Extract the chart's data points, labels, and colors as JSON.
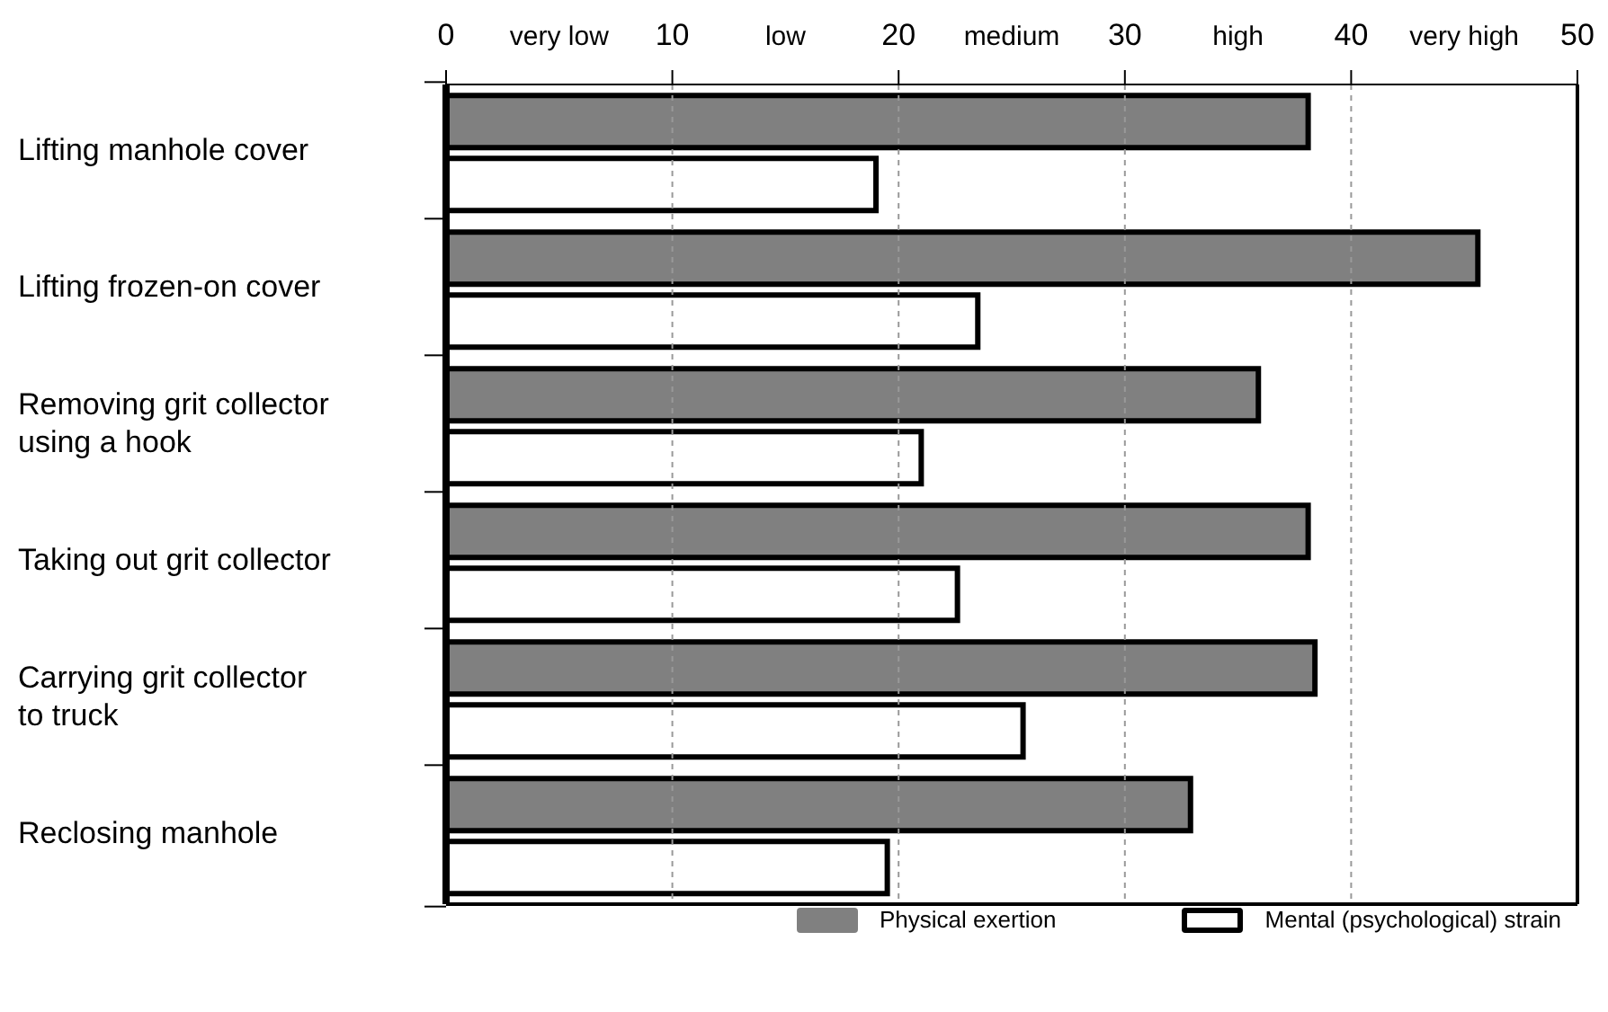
{
  "chart_data": {
    "type": "bar",
    "orientation": "horizontal",
    "categories": [
      "Lifting manhole cover",
      "Lifting frozen-on cover",
      "Removing grit collector\nusing a hook",
      "Taking out grit collector",
      "Carrying grit collector\nto truck",
      "Reclosing manhole"
    ],
    "series": [
      {
        "name": "Physical exertion",
        "color": "#808080",
        "values": [
          38.1,
          45.6,
          35.9,
          38.1,
          38.4,
          32.9
        ]
      },
      {
        "name": "Mental (psychological) strain",
        "color": "#ffffff",
        "values": [
          19.0,
          23.5,
          21.0,
          22.6,
          25.5,
          19.5
        ]
      }
    ],
    "xlim": [
      0,
      50
    ],
    "xticks": [
      0,
      {
        "value": 5,
        "label": "very low"
      },
      10,
      {
        "value": 15,
        "label": "low"
      },
      20,
      {
        "value": 25,
        "label": "medium"
      },
      30,
      {
        "value": 35,
        "label": "high"
      },
      40,
      {
        "value": 45,
        "label": "very high"
      },
      50
    ],
    "grid": "x",
    "legend": "bottom right"
  }
}
